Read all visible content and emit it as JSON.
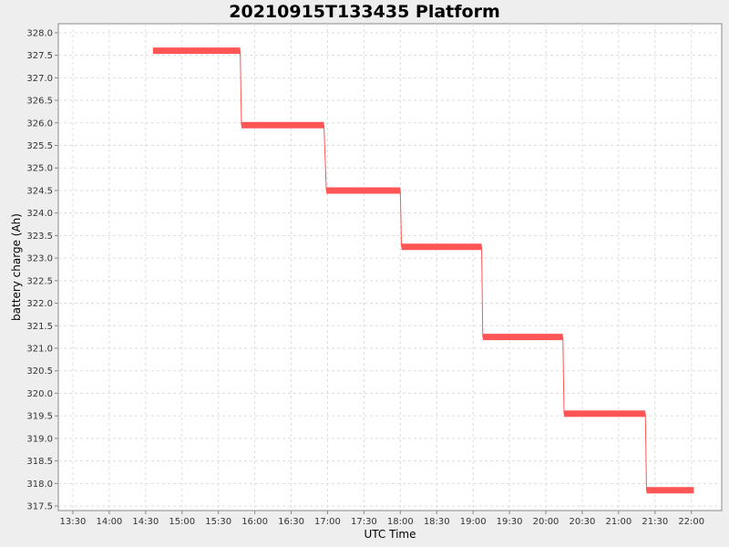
{
  "chart_data": {
    "type": "line",
    "title": "20210915T133435 Platform",
    "xlabel": "UTC Time",
    "ylabel": "battery charge (Ah)",
    "x_ticks": [
      "13:30",
      "14:00",
      "14:30",
      "15:00",
      "15:30",
      "16:00",
      "16:30",
      "17:00",
      "17:30",
      "18:00",
      "18:30",
      "19:00",
      "19:30",
      "20:00",
      "20:30",
      "21:00",
      "21:30",
      "22:00"
    ],
    "y_ticks": [
      "317.5",
      "318.0",
      "318.5",
      "319.0",
      "319.5",
      "320.0",
      "320.5",
      "321.0",
      "321.5",
      "322.0",
      "322.5",
      "323.0",
      "323.5",
      "324.0",
      "324.5",
      "325.0",
      "325.5",
      "326.0",
      "326.5",
      "327.0",
      "327.5",
      "328.0"
    ],
    "xlim": [
      "13:18",
      "22:25"
    ],
    "ylim": [
      317.4,
      328.2
    ],
    "grid": true,
    "series": [
      {
        "color": "#ff5555",
        "points": [
          {
            "x": "14:36",
            "y": 327.6
          },
          {
            "x": "15:48",
            "y": 327.6
          },
          {
            "x": "15:49",
            "y": 325.95
          },
          {
            "x": "16:57",
            "y": 325.95
          },
          {
            "x": "16:59",
            "y": 324.5
          },
          {
            "x": "18:00",
            "y": 324.5
          },
          {
            "x": "18:01",
            "y": 323.25
          },
          {
            "x": "19:07",
            "y": 323.25
          },
          {
            "x": "19:08",
            "y": 321.25
          },
          {
            "x": "20:14",
            "y": 321.25
          },
          {
            "x": "20:15",
            "y": 319.55
          },
          {
            "x": "21:22",
            "y": 319.55
          },
          {
            "x": "21:23",
            "y": 317.85
          },
          {
            "x": "22:02",
            "y": 317.85
          }
        ]
      }
    ]
  }
}
